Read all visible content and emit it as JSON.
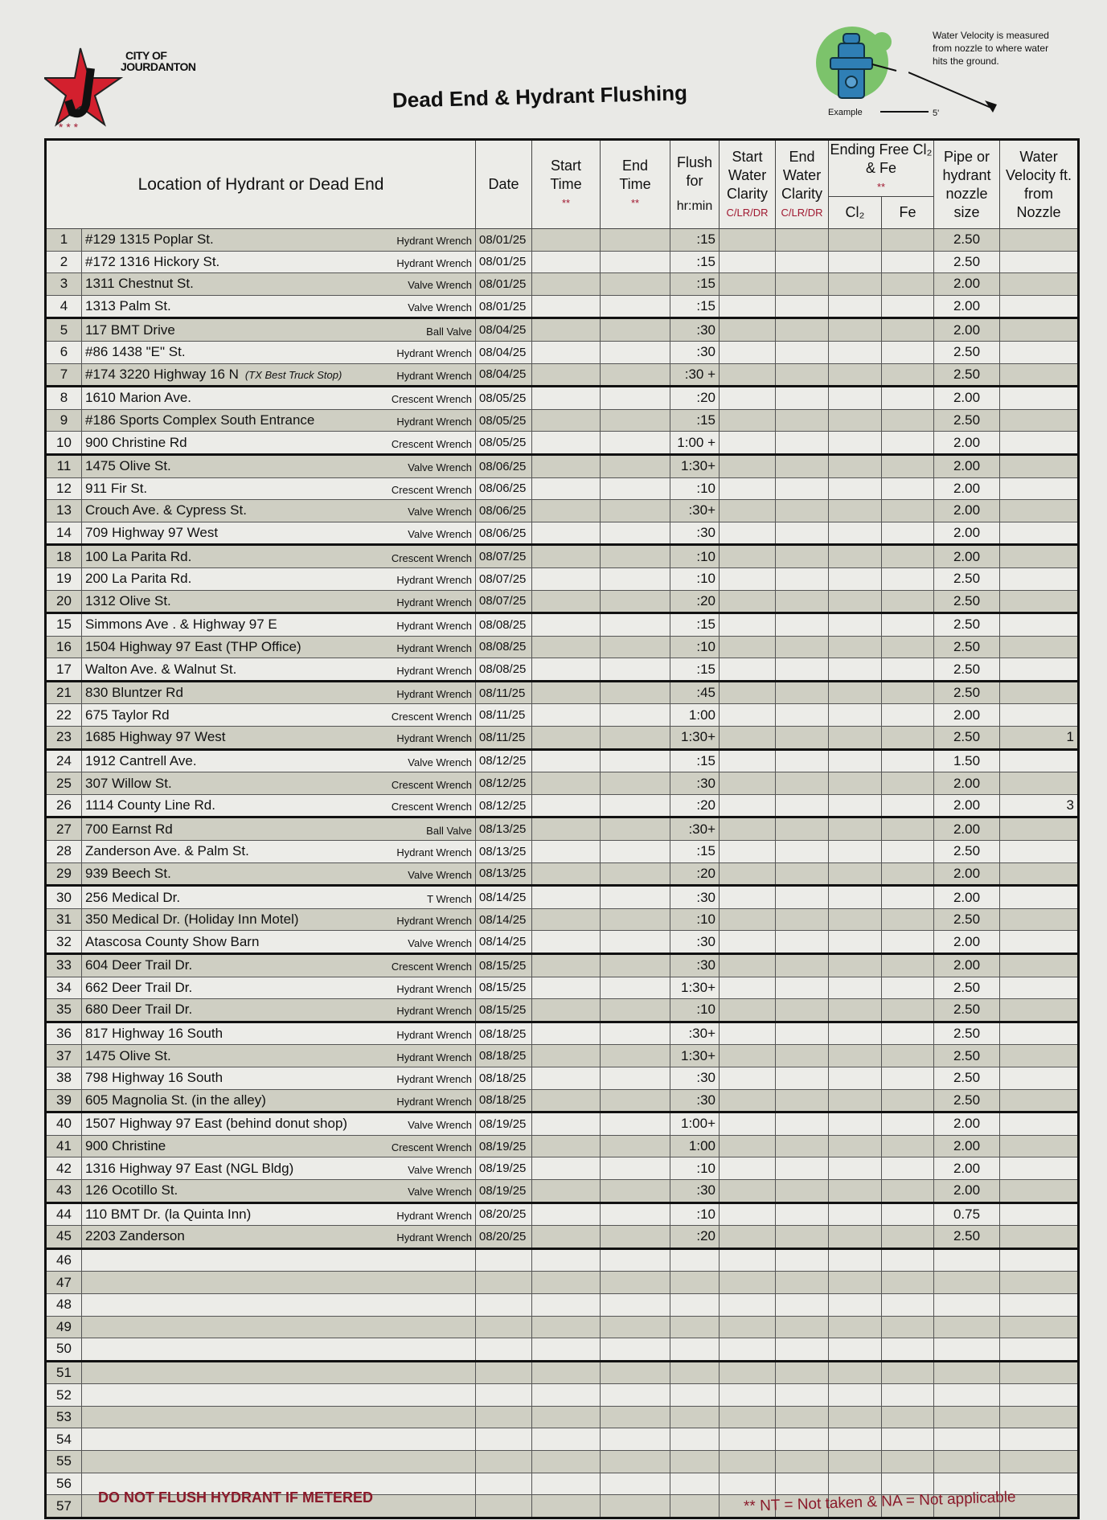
{
  "header": {
    "logo_line1": "CITY OF",
    "logo_line2": "JOURDANTON",
    "title": "Dead End & Hydrant Flushing",
    "velocity_note": "Water Velocity is measured from nozzle to where water hits the ground.",
    "example_label": "Example",
    "distance_label": "5'"
  },
  "columns": {
    "location": "Location of Hydrant or Dead End",
    "date": "Date",
    "start_time": "Start Time",
    "end_time": "End Time",
    "flush": "Flush for",
    "flush_unit": "hr:min",
    "start_clarity": "Start Water Clarity",
    "end_clarity": "End Water Clarity",
    "clarity_code": "C/LR/DR",
    "ending": "Ending Free Cl₂ & Fe",
    "cl2": "Cl₂",
    "fe": "Fe",
    "pipe": "Pipe or hydrant nozzle size",
    "velocity": "Water Velocity ft. from Nozzle",
    "asterisks": "**"
  },
  "rows": [
    [
      "1",
      "#129 1315 Poplar St.",
      "",
      "Hydrant Wrench",
      "08/01/25",
      ":15",
      "2.50",
      ""
    ],
    [
      "2",
      "#172 1316 Hickory St.",
      "",
      "Hydrant Wrench",
      "08/01/25",
      ":15",
      "2.50",
      ""
    ],
    [
      "3",
      "1311 Chestnut St.",
      "",
      "Valve Wrench",
      "08/01/25",
      ":15",
      "2.00",
      ""
    ],
    [
      "4",
      "1313 Palm St.",
      "",
      "Valve Wrench",
      "08/01/25",
      ":15",
      "2.00",
      ""
    ],
    [
      "5",
      "117 BMT Drive",
      "",
      "Ball Valve",
      "08/04/25",
      ":30",
      "2.00",
      ""
    ],
    [
      "6",
      "#86 1438 \"E\" St.",
      "",
      "Hydrant Wrench",
      "08/04/25",
      ":30",
      "2.50",
      ""
    ],
    [
      "7",
      "#174 3220 Highway 16 N",
      "(TX Best Truck Stop)",
      "Hydrant Wrench",
      "08/04/25",
      ":30 +",
      "2.50",
      ""
    ],
    [
      "8",
      "1610 Marion Ave.",
      "",
      "Crescent Wrench",
      "08/05/25",
      ":20",
      "2.00",
      ""
    ],
    [
      "9",
      "#186 Sports Complex South Entrance",
      "",
      "Hydrant Wrench",
      "08/05/25",
      ":15",
      "2.50",
      ""
    ],
    [
      "10",
      "900 Christine Rd",
      "",
      "Crescent Wrench",
      "08/05/25",
      "1:00 +",
      "2.00",
      ""
    ],
    [
      "11",
      "1475 Olive St.",
      "",
      "Valve Wrench",
      "08/06/25",
      "1:30+",
      "2.00",
      ""
    ],
    [
      "12",
      "911 Fir St.",
      "",
      "Crescent Wrench",
      "08/06/25",
      ":10",
      "2.00",
      ""
    ],
    [
      "13",
      "Crouch Ave. & Cypress St.",
      "",
      "Valve Wrench",
      "08/06/25",
      ":30+",
      "2.00",
      ""
    ],
    [
      "14",
      "709 Highway 97 West",
      "",
      "Valve Wrench",
      "08/06/25",
      ":30",
      "2.00",
      ""
    ],
    [
      "18",
      "100 La Parita Rd.",
      "",
      "Crescent Wrench",
      "08/07/25",
      ":10",
      "2.00",
      ""
    ],
    [
      "19",
      "200 La Parita Rd.",
      "",
      "Hydrant Wrench",
      "08/07/25",
      ":10",
      "2.50",
      ""
    ],
    [
      "20",
      "1312 Olive St.",
      "",
      "Hydrant Wrench",
      "08/07/25",
      ":20",
      "2.50",
      ""
    ],
    [
      "15",
      "Simmons Ave . & Highway 97 E",
      "",
      "Hydrant Wrench",
      "08/08/25",
      ":15",
      "2.50",
      ""
    ],
    [
      "16",
      "1504 Highway 97 East (THP Office)",
      "",
      "Hydrant Wrench",
      "08/08/25",
      ":10",
      "2.50",
      ""
    ],
    [
      "17",
      "Walton Ave. & Walnut St.",
      "",
      "Hydrant Wrench",
      "08/08/25",
      ":15",
      "2.50",
      ""
    ],
    [
      "21",
      "830 Bluntzer Rd",
      "",
      "Hydrant Wrench",
      "08/11/25",
      ":45",
      "2.50",
      ""
    ],
    [
      "22",
      "675 Taylor Rd",
      "",
      "Crescent Wrench",
      "08/11/25",
      "1:00",
      "2.00",
      ""
    ],
    [
      "23",
      "1685 Highway 97 West",
      "",
      "Hydrant Wrench",
      "08/11/25",
      "1:30+",
      "2.50",
      "1"
    ],
    [
      "24",
      "1912 Cantrell Ave.",
      "",
      "Valve Wrench",
      "08/12/25",
      ":15",
      "1.50",
      ""
    ],
    [
      "25",
      "307 Willow St.",
      "",
      "Crescent Wrench",
      "08/12/25",
      ":30",
      "2.00",
      ""
    ],
    [
      "26",
      "1114 County Line Rd.",
      "",
      "Crescent Wrench",
      "08/12/25",
      ":20",
      "2.00",
      "3"
    ],
    [
      "27",
      "700 Earnst Rd",
      "",
      "Ball Valve",
      "08/13/25",
      ":30+",
      "2.00",
      ""
    ],
    [
      "28",
      "Zanderson Ave. & Palm St.",
      "",
      "Hydrant Wrench",
      "08/13/25",
      ":15",
      "2.50",
      ""
    ],
    [
      "29",
      "939 Beech St.",
      "",
      "Valve Wrench",
      "08/13/25",
      ":20",
      "2.00",
      ""
    ],
    [
      "30",
      "256 Medical Dr.",
      "",
      "T Wrench",
      "08/14/25",
      ":30",
      "2.00",
      ""
    ],
    [
      "31",
      "350 Medical Dr. (Holiday Inn Motel)",
      "",
      "Hydrant Wrench",
      "08/14/25",
      ":10",
      "2.50",
      ""
    ],
    [
      "32",
      "Atascosa County Show Barn",
      "",
      "Valve Wrench",
      "08/14/25",
      ":30",
      "2.00",
      ""
    ],
    [
      "33",
      "604 Deer Trail Dr.",
      "",
      "Crescent Wrench",
      "08/15/25",
      ":30",
      "2.00",
      ""
    ],
    [
      "34",
      "662 Deer Trail Dr.",
      "",
      "Hydrant Wrench",
      "08/15/25",
      "1:30+",
      "2.50",
      ""
    ],
    [
      "35",
      "680 Deer Trail Dr.",
      "",
      "Hydrant Wrench",
      "08/15/25",
      ":10",
      "2.50",
      ""
    ],
    [
      "36",
      "817 Highway 16 South",
      "",
      "Hydrant Wrench",
      "08/18/25",
      ":30+",
      "2.50",
      ""
    ],
    [
      "37",
      "1475 Olive St.",
      "",
      "Hydrant Wrench",
      "08/18/25",
      "1:30+",
      "2.50",
      ""
    ],
    [
      "38",
      "798 Highway 16 South",
      "",
      "Hydrant Wrench",
      "08/18/25",
      ":30",
      "2.50",
      ""
    ],
    [
      "39",
      "605 Magnolia St. (in the alley)",
      "",
      "Hydrant Wrench",
      "08/18/25",
      ":30",
      "2.50",
      ""
    ],
    [
      "40",
      "1507 Highway 97 East (behind donut shop)",
      "",
      "Valve Wrench",
      "08/19/25",
      "1:00+",
      "2.00",
      ""
    ],
    [
      "41",
      "900 Christine",
      "",
      "Crescent Wrench",
      "08/19/25",
      "1:00",
      "2.00",
      ""
    ],
    [
      "42",
      "1316 Highway 97 East (NGL Bldg)",
      "",
      "Valve Wrench",
      "08/19/25",
      ":10",
      "2.00",
      ""
    ],
    [
      "43",
      "126 Ocotillo St.",
      "",
      "Valve Wrench",
      "08/19/25",
      ":30",
      "2.00",
      ""
    ],
    [
      "44",
      "110 BMT Dr. (la Quinta Inn)",
      "",
      "Hydrant Wrench",
      "08/20/25",
      ":10",
      "0.75",
      ""
    ],
    [
      "45",
      "2203 Zanderson",
      "",
      "Hydrant Wrench",
      "08/20/25",
      ":20",
      "2.50",
      ""
    ],
    [
      "46",
      "",
      "",
      "",
      "",
      "",
      "",
      ""
    ],
    [
      "47",
      "",
      "",
      "",
      "",
      "",
      "",
      ""
    ],
    [
      "48",
      "",
      "",
      "",
      "",
      "",
      "",
      ""
    ],
    [
      "49",
      "",
      "",
      "",
      "",
      "",
      "",
      ""
    ],
    [
      "50",
      "",
      "",
      "",
      "",
      "",
      "",
      ""
    ],
    [
      "51",
      "",
      "",
      "",
      "",
      "",
      "",
      ""
    ],
    [
      "52",
      "",
      "",
      "",
      "",
      "",
      "",
      ""
    ],
    [
      "53",
      "",
      "",
      "",
      "",
      "",
      "",
      ""
    ],
    [
      "54",
      "",
      "",
      "",
      "",
      "",
      "",
      ""
    ],
    [
      "55",
      "",
      "",
      "",
      "",
      "",
      "",
      ""
    ],
    [
      "56",
      "",
      "",
      "",
      "",
      "",
      "",
      ""
    ],
    [
      "57",
      "",
      "",
      "",
      "",
      "",
      "",
      ""
    ]
  ],
  "footer": {
    "warning": "DO NOT FLUSH HYDRANT IF METERED",
    "legend": "** NT = Not taken & NA = Not applicable"
  },
  "colors": {
    "accent_red": "#a01830",
    "row_shade": "#cfcfc3",
    "hydrant_blue": "#2f7fb5",
    "hydrant_bg_green": "#7cc36b"
  }
}
